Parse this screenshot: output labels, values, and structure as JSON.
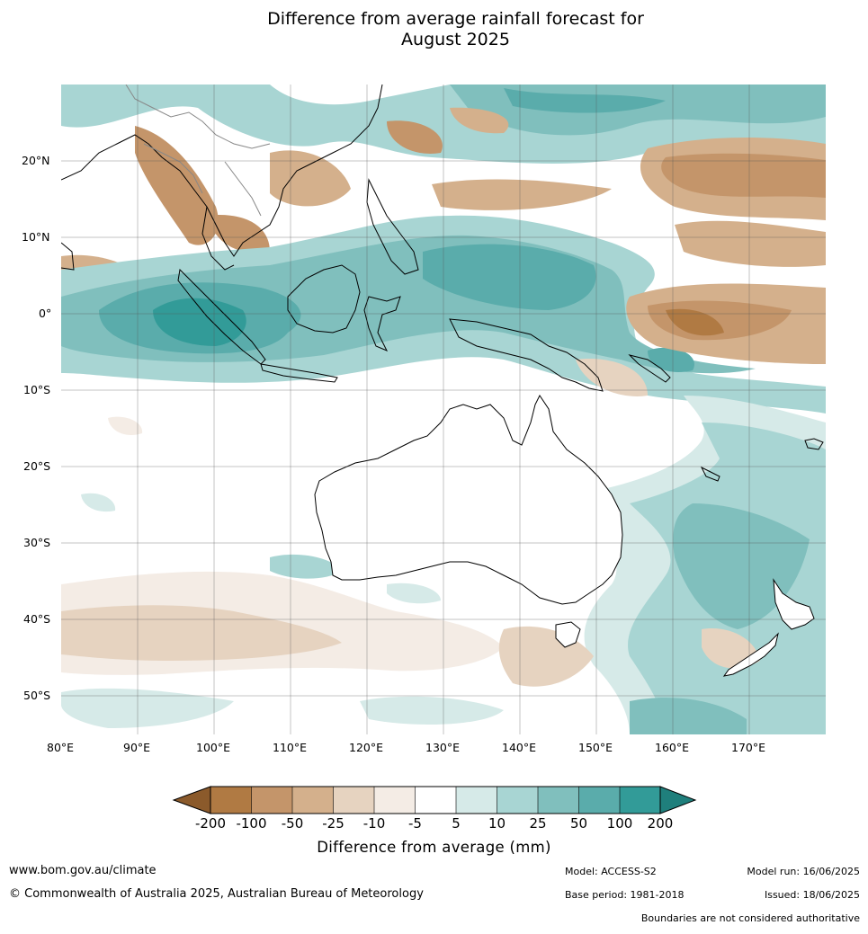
{
  "title": {
    "line1": "Difference from average rainfall forecast for",
    "line2": "August 2025"
  },
  "map": {
    "lon_labels": [
      "80°E",
      "90°E",
      "100°E",
      "110°E",
      "120°E",
      "130°E",
      "140°E",
      "150°E",
      "160°E",
      "170°E"
    ],
    "lat_labels": [
      "20°N",
      "10°N",
      "0°",
      "10°S",
      "20°S",
      "30°S",
      "40°S",
      "50°S"
    ]
  },
  "colorbar": {
    "ticks": [
      "-200",
      "-100",
      "-50",
      "-25",
      "-10",
      "-5",
      "5",
      "10",
      "25",
      "50",
      "100",
      "200"
    ],
    "colors": [
      "#8b5a2b",
      "#b07a43",
      "#c4956a",
      "#d4b08c",
      "#e6d3c0",
      "#f4ece5",
      "#ffffff",
      "#d6eae8",
      "#a8d5d3",
      "#80bfbd",
      "#5aacab",
      "#329b98",
      "#1f7f7c"
    ],
    "label": "Difference from average (mm)"
  },
  "footer": {
    "website": "www.bom.gov.au/climate",
    "copyright": "© Commonwealth of Australia 2025, Australian Bureau of Meteorology",
    "model": "Model: ACCESS-S2",
    "base_period": "Base period: 1981-2018",
    "model_run": "Model run: 16/06/2025",
    "issued": "Issued: 18/06/2025",
    "disclaimer": "Boundaries are not considered authoritative"
  }
}
